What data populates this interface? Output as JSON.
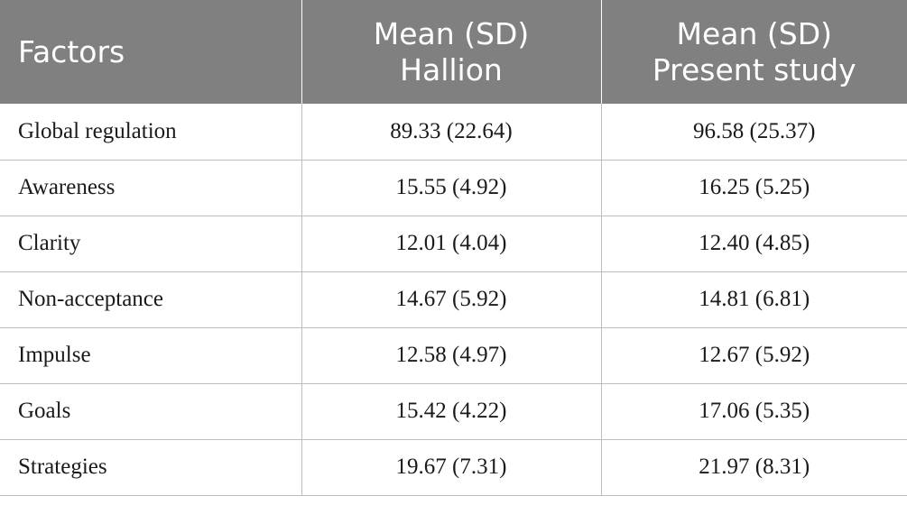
{
  "table": {
    "header": {
      "col1": "Factors",
      "col2_line1": "Mean (SD)",
      "col2_line2": "Hallion",
      "col3_line1": "Mean (SD)",
      "col3_line2": "Present study"
    },
    "rows": [
      {
        "factor": "Global regulation",
        "hallion": "89.33 (22.64)",
        "present": "96.58 (25.37)"
      },
      {
        "factor": "Awareness",
        "hallion": "15.55 (4.92)",
        "present": "16.25 (5.25)"
      },
      {
        "factor": "Clarity",
        "hallion": "12.01 (4.04)",
        "present": "12.40 (4.85)"
      },
      {
        "factor": "Non-acceptance",
        "hallion": "14.67 (5.92)",
        "present": "14.81 (6.81)"
      },
      {
        "factor": "Impulse",
        "hallion": "12.58 (4.97)",
        "present": "12.67 (5.92)"
      },
      {
        "factor": "Goals",
        "hallion": "15.42 (4.22)",
        "present": "17.06 (5.35)"
      },
      {
        "factor": "Strategies",
        "hallion": "19.67 (7.31)",
        "present": "21.97 (8.31)"
      }
    ]
  },
  "colors": {
    "header_background": "#808080",
    "header_text": "#ffffff",
    "grid_lines": "#bdbdbd"
  }
}
